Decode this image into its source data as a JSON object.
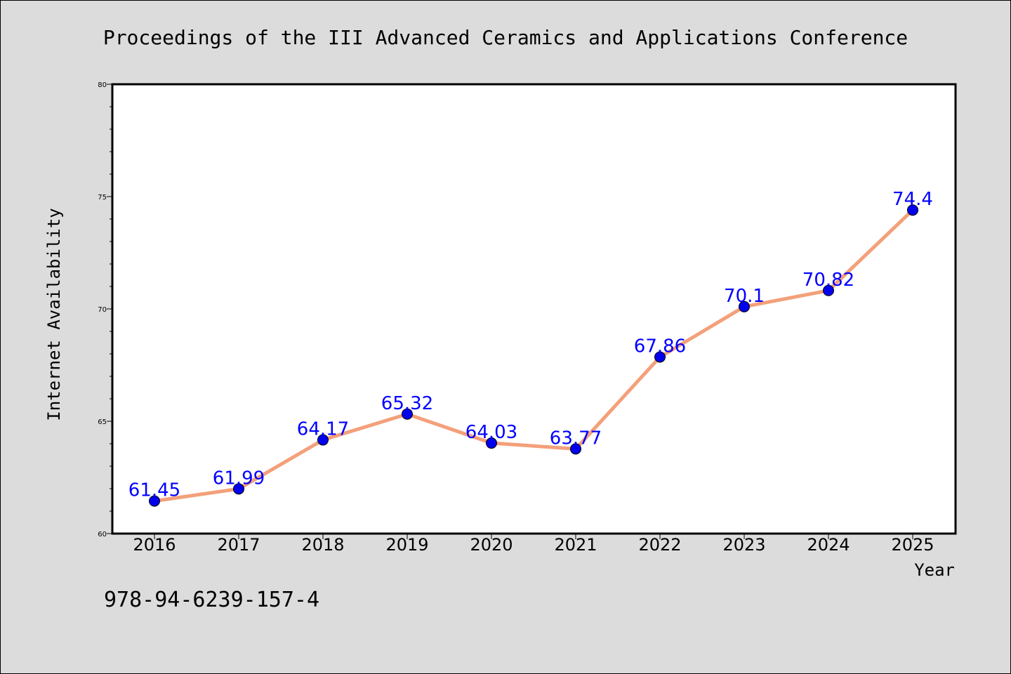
{
  "chart_data": {
    "type": "line",
    "title": "Proceedings of the III Advanced Ceramics and Applications Conference",
    "xlabel": "Year",
    "ylabel": "Internet Availability",
    "x": [
      "2016",
      "2017",
      "2018",
      "2019",
      "2020",
      "2021",
      "2022",
      "2023",
      "2024",
      "2025"
    ],
    "series": [
      {
        "values": [
          61.45,
          61.99,
          64.17,
          65.32,
          64.03,
          63.77,
          67.86,
          70.1,
          70.82,
          74.4
        ],
        "data_labels": [
          "61.45",
          "61.99",
          "64.17",
          "65.32",
          "64.03",
          "63.77",
          "67.86",
          "70.1",
          "70.82",
          "74.4"
        ],
        "line_color": "#f4a07a",
        "marker_color": "#0000ee"
      }
    ],
    "ylim": [
      60,
      80
    ],
    "yticks": [
      "60",
      "65",
      "70",
      "75",
      "80"
    ],
    "grid": false,
    "legend": "none"
  },
  "footer": {
    "isbn": "978-94-6239-157-4"
  },
  "colors": {
    "background": "#dcdcdc",
    "plot_background": "#ffffff",
    "data_label": "#0000ff"
  }
}
